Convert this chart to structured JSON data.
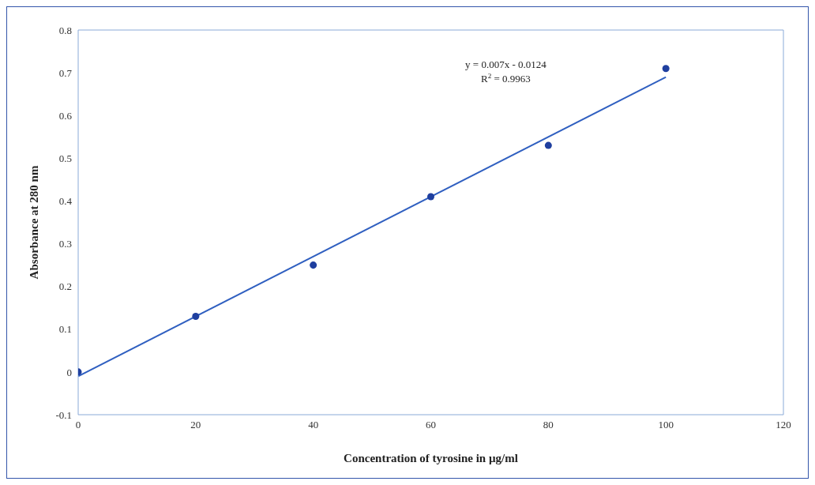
{
  "chart_data": {
    "type": "scatter",
    "xlabel": "Concentration of tyrosine in µg/ml",
    "ylabel": "Absorbance at 280 nm",
    "xlim": [
      0,
      120
    ],
    "xticks": [
      0,
      20,
      40,
      60,
      80,
      100,
      120
    ],
    "ylim": [
      -0.1,
      0.8
    ],
    "yticks": [
      -0.1,
      0,
      0.1,
      0.2,
      0.3,
      0.4,
      0.5,
      0.6,
      0.7,
      0.8
    ],
    "grid": false,
    "marker": "circle",
    "annotations": [
      "y = 0.007x - 0.0124",
      "R$^{2}$ = 0.9963"
    ],
    "x": [
      0,
      20,
      40,
      60,
      80,
      100
    ],
    "series": [
      {
        "color": "#1f3f9f",
        "values": [
          0,
          0.13,
          0.25,
          0.41,
          0.53,
          0.71
        ]
      },
      {
        "type": "line",
        "color": "#2f5fc0",
        "x": [
          0,
          100
        ],
        "values": [
          -0.01,
          0.69
        ],
        "line_style": "solid",
        "marker": "none"
      }
    ]
  }
}
